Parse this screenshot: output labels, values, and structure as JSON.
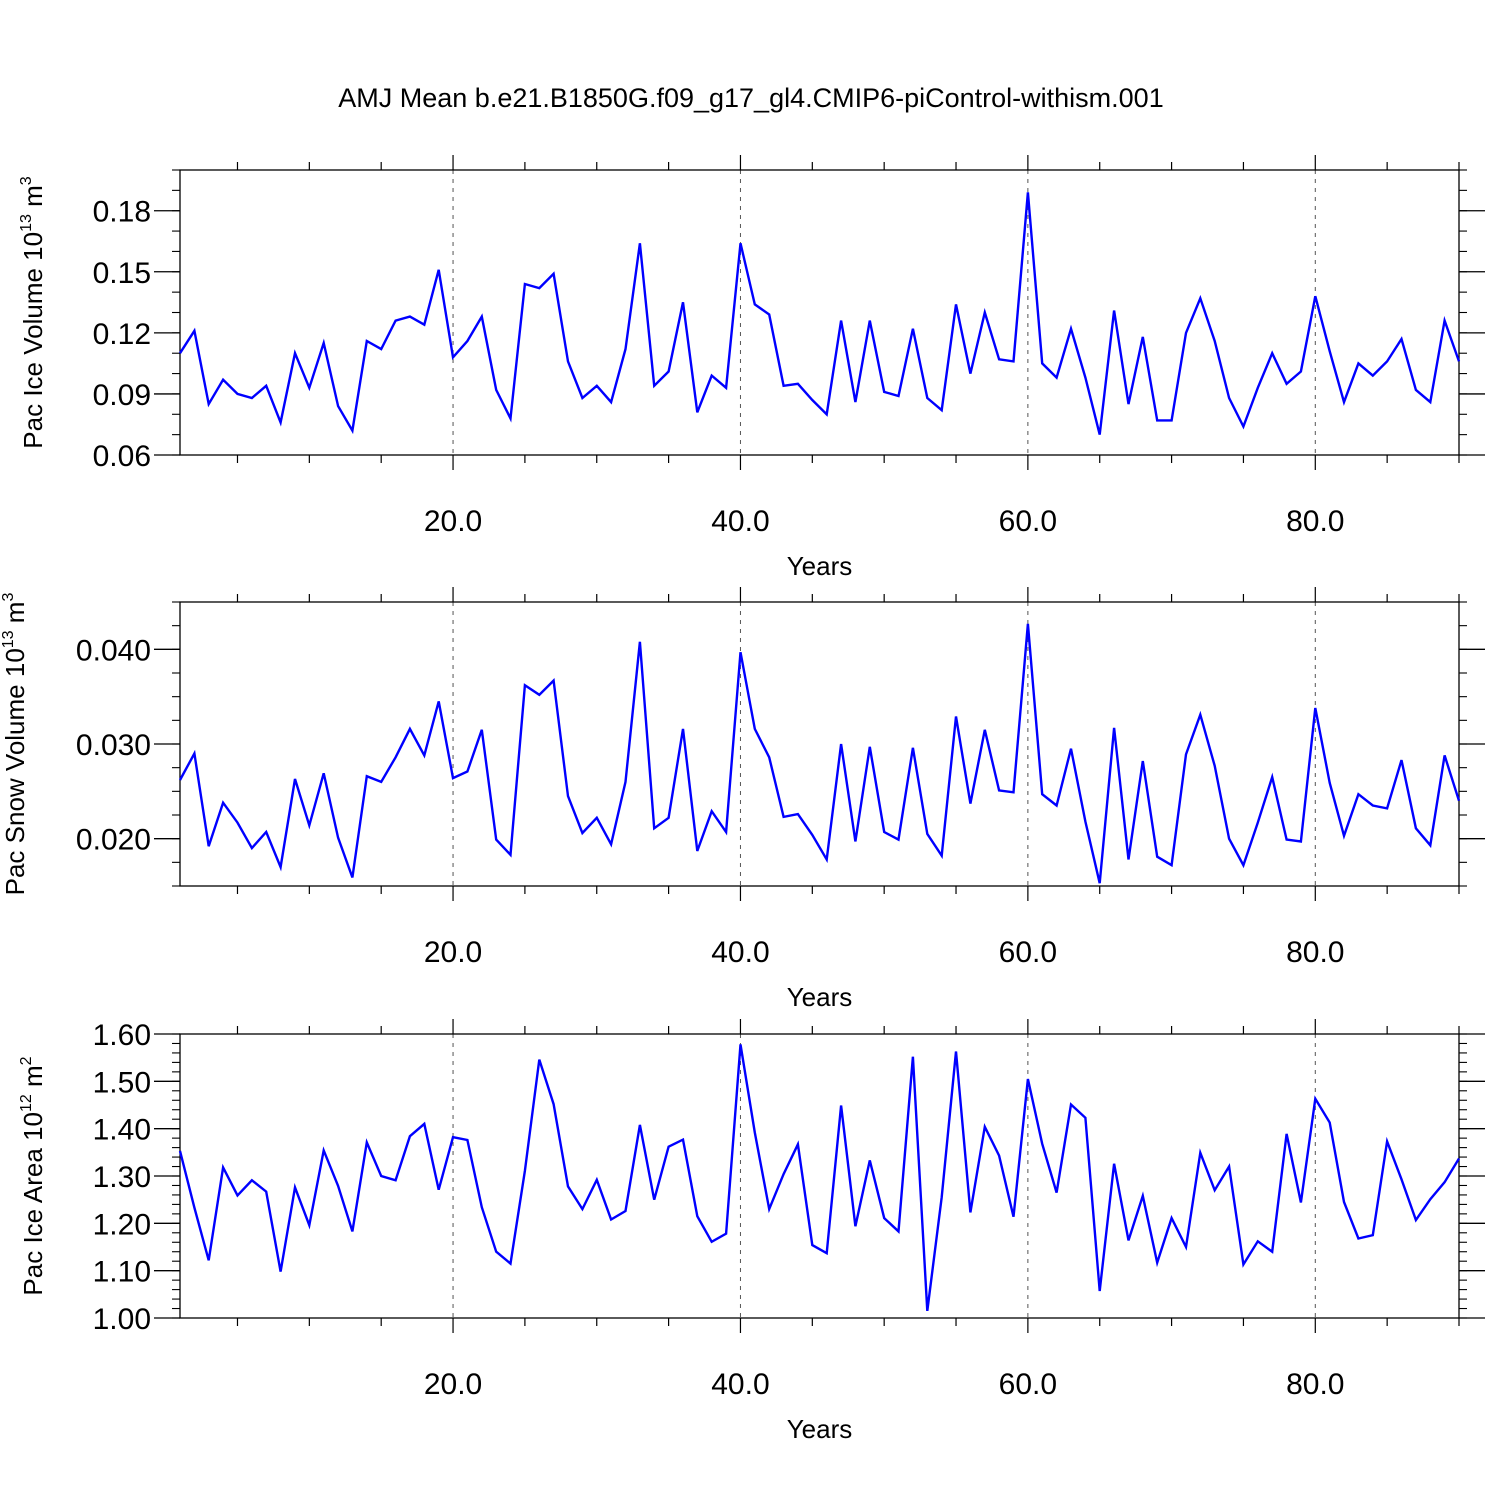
{
  "figure": {
    "title": "AMJ Mean b.e21.B1850G.f09_g17_gl4.CMIP6-piControl-withism.001"
  },
  "style": {
    "line_color": "#0000ff",
    "axis_color": "#000000",
    "grid_color": "#555555"
  },
  "chart_data": [
    {
      "type": "line",
      "title": "",
      "xlabel": "Years",
      "ylabel": {
        "text": "Pac Ice Volume 10",
        "sup": "13",
        "unit": " m",
        "unit_sup": "3"
      },
      "xlim": [
        1,
        90
      ],
      "ylim": [
        0.06,
        0.2
      ],
      "x_ticks": [
        20,
        40,
        60,
        80
      ],
      "x_tick_labels": [
        "20.0",
        "40.0",
        "60.0",
        "80.0"
      ],
      "y_ticks": [
        0.06,
        0.09,
        0.12,
        0.15,
        0.18
      ],
      "y_tick_labels": [
        "0.06",
        "0.09",
        "0.12",
        "0.15",
        "0.18"
      ],
      "grid": "vertical dashed at major x ticks",
      "series": [
        {
          "values": [
            0.11,
            0.121,
            0.085,
            0.097,
            0.09,
            0.088,
            0.094,
            0.076,
            0.11,
            0.093,
            0.115,
            0.084,
            0.072,
            0.116,
            0.112,
            0.126,
            0.128,
            0.124,
            0.151,
            0.108,
            0.116,
            0.128,
            0.092,
            0.078,
            0.144,
            0.142,
            0.149,
            0.106,
            0.088,
            0.094,
            0.086,
            0.112,
            0.164,
            0.094,
            0.101,
            0.135,
            0.081,
            0.099,
            0.093,
            0.164,
            0.134,
            0.129,
            0.094,
            0.095,
            0.087,
            0.08,
            0.126,
            0.086,
            0.126,
            0.091,
            0.089,
            0.122,
            0.088,
            0.082,
            0.134,
            0.1,
            0.13,
            0.107,
            0.106,
            0.189,
            0.105,
            0.098,
            0.122,
            0.098,
            0.07,
            0.131,
            0.085,
            0.118,
            0.077,
            0.077,
            0.12,
            0.137,
            0.116,
            0.088,
            0.074,
            0.093,
            0.11,
            0.095,
            0.101,
            0.138,
            0.111,
            0.086,
            0.105,
            0.099,
            0.106,
            0.117,
            0.092,
            0.086,
            0.126,
            0.106
          ]
        }
      ]
    },
    {
      "type": "line",
      "title": "",
      "xlabel": "Years",
      "ylabel": {
        "text": "Pac Snow Volume 10",
        "sup": "13",
        "unit": " m",
        "unit_sup": "3"
      },
      "xlim": [
        1,
        90
      ],
      "ylim": [
        0.015,
        0.045
      ],
      "x_ticks": [
        20,
        40,
        60,
        80
      ],
      "x_tick_labels": [
        "20.0",
        "40.0",
        "60.0",
        "80.0"
      ],
      "y_ticks": [
        0.02,
        0.03,
        0.04
      ],
      "y_tick_labels": [
        "0.020",
        "0.030",
        "0.040"
      ],
      "grid": "vertical dashed at major x ticks",
      "series": [
        {
          "values": [
            0.0262,
            0.029,
            0.0192,
            0.0238,
            0.0217,
            0.019,
            0.0207,
            0.017,
            0.0263,
            0.0214,
            0.0269,
            0.0201,
            0.0159,
            0.0266,
            0.026,
            0.0286,
            0.0316,
            0.0288,
            0.0345,
            0.0264,
            0.0271,
            0.0315,
            0.0199,
            0.0183,
            0.0362,
            0.0352,
            0.0367,
            0.0245,
            0.0206,
            0.0222,
            0.0194,
            0.026,
            0.0408,
            0.0211,
            0.0222,
            0.0316,
            0.0187,
            0.0229,
            0.0207,
            0.0397,
            0.0316,
            0.0286,
            0.0223,
            0.0226,
            0.0204,
            0.0178,
            0.03,
            0.0197,
            0.0297,
            0.0207,
            0.0199,
            0.0296,
            0.0205,
            0.0182,
            0.0329,
            0.0237,
            0.0315,
            0.0251,
            0.0249,
            0.0427,
            0.0247,
            0.0235,
            0.0295,
            0.0218,
            0.0153,
            0.0317,
            0.0178,
            0.0282,
            0.0181,
            0.0172,
            0.0289,
            0.0331,
            0.0277,
            0.02,
            0.0172,
            0.0217,
            0.0265,
            0.0199,
            0.0197,
            0.0338,
            0.0259,
            0.0203,
            0.0247,
            0.0235,
            0.0232,
            0.0283,
            0.0211,
            0.0193,
            0.0288,
            0.024
          ]
        }
      ]
    },
    {
      "type": "line",
      "title": "",
      "xlabel": "Years",
      "ylabel": {
        "text": "Pac Ice Area 10",
        "sup": "12",
        "unit": " m",
        "unit_sup": "2"
      },
      "xlim": [
        1,
        90
      ],
      "ylim": [
        1.0,
        1.6
      ],
      "x_ticks": [
        20,
        40,
        60,
        80
      ],
      "x_tick_labels": [
        "20.0",
        "40.0",
        "60.0",
        "80.0"
      ],
      "y_ticks": [
        1.0,
        1.1,
        1.2,
        1.3,
        1.4,
        1.5,
        1.6
      ],
      "y_tick_labels": [
        "1.00",
        "1.10",
        "1.20",
        "1.30",
        "1.40",
        "1.50",
        "1.60"
      ],
      "grid": "vertical dashed at major x ticks",
      "series": [
        {
          "values": [
            1.353,
            1.233,
            1.122,
            1.318,
            1.259,
            1.291,
            1.267,
            1.098,
            1.276,
            1.196,
            1.354,
            1.279,
            1.183,
            1.371,
            1.3,
            1.291,
            1.384,
            1.41,
            1.271,
            1.382,
            1.376,
            1.234,
            1.14,
            1.115,
            1.311,
            1.546,
            1.452,
            1.278,
            1.23,
            1.292,
            1.208,
            1.226,
            1.408,
            1.25,
            1.362,
            1.377,
            1.215,
            1.161,
            1.178,
            1.578,
            1.392,
            1.23,
            1.304,
            1.367,
            1.154,
            1.137,
            1.449,
            1.194,
            1.333,
            1.211,
            1.183,
            1.552,
            1.015,
            1.255,
            1.563,
            1.223,
            1.404,
            1.343,
            1.214,
            1.505,
            1.368,
            1.265,
            1.451,
            1.423,
            1.057,
            1.326,
            1.164,
            1.258,
            1.117,
            1.211,
            1.15,
            1.349,
            1.27,
            1.32,
            1.113,
            1.162,
            1.14,
            1.389,
            1.244,
            1.463,
            1.413,
            1.245,
            1.168,
            1.175,
            1.373,
            1.293,
            1.207,
            1.251,
            1.287,
            1.337
          ]
        }
      ]
    }
  ]
}
